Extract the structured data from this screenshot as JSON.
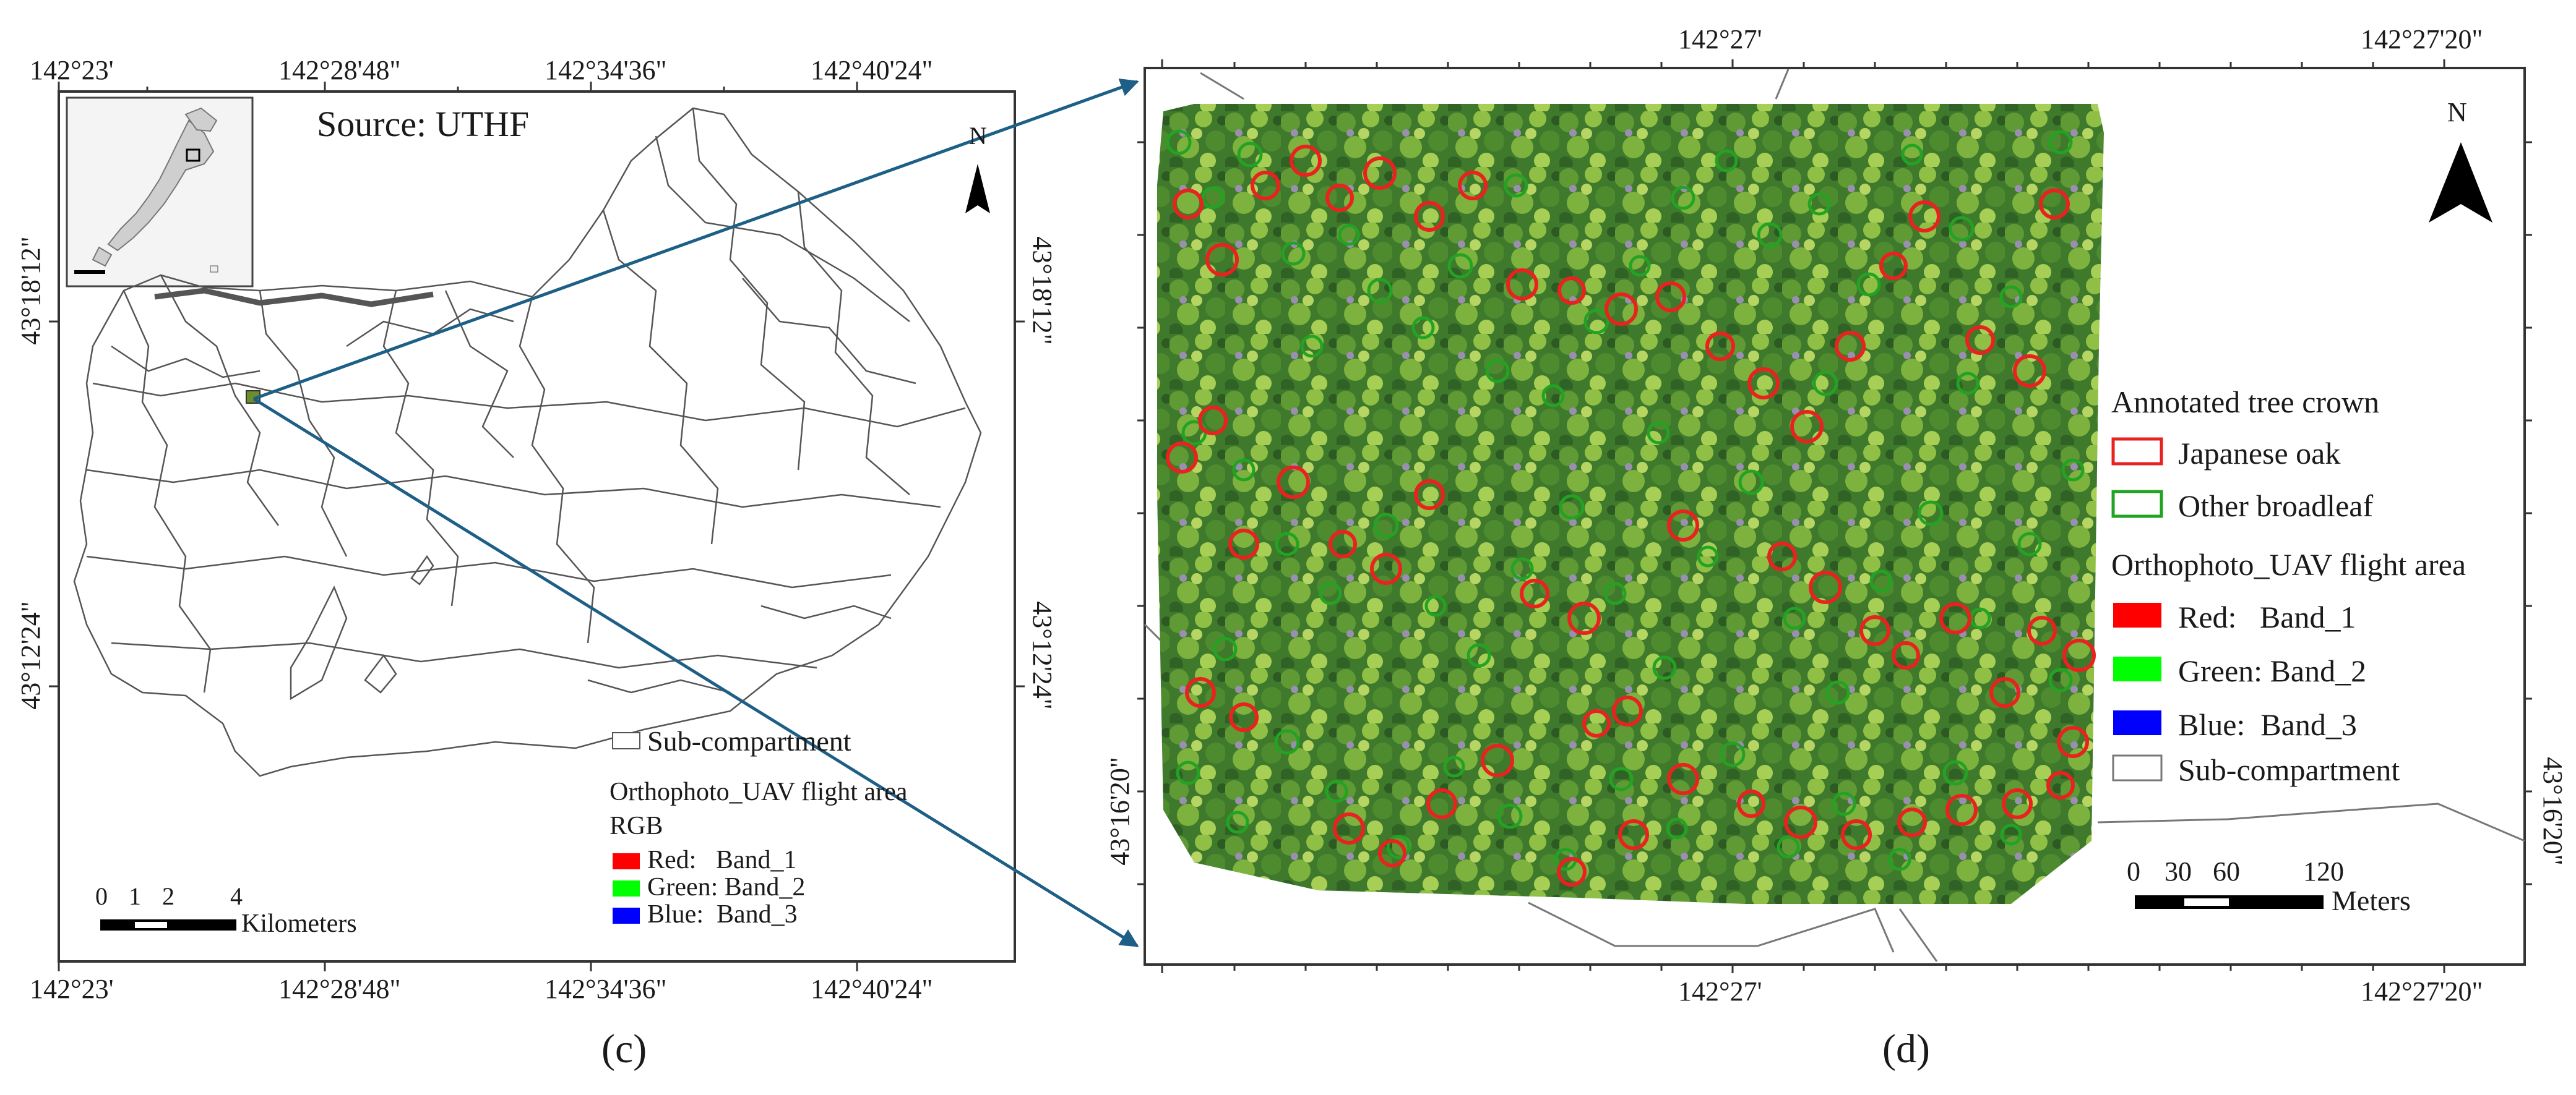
{
  "panel_c": {
    "top_lon_labels": [
      "142°23'",
      "142°28'48\"",
      "142°34'36\"",
      "142°40'24\""
    ],
    "bottom_lon_labels": [
      "142°23'",
      "142°28'48\"",
      "142°34'36\"",
      "142°40'24\""
    ],
    "left_lat_labels": [
      "43°18'12\"",
      "43°12'24\""
    ],
    "right_lat_labels": [
      "43°18'12\"",
      "43°12'24\""
    ],
    "source": "Source: UTHF",
    "north": "N",
    "legend": {
      "subcompartment": "Sub-compartment",
      "area_title": "Orthophoto_UAV flight area",
      "rgb": "RGB",
      "bands": [
        {
          "label": "Red:   Band_1",
          "color": "#ff0000"
        },
        {
          "label": "Green: Band_2",
          "color": "#00ff00"
        },
        {
          "label": "Blue:  Band_3",
          "color": "#0000ff"
        }
      ]
    },
    "scale": {
      "ticks": [
        "0",
        "1",
        "2",
        "4"
      ],
      "unit": "Kilometers"
    },
    "caption": "(c)"
  },
  "panel_d": {
    "top_lon_labels": [
      "142°27'",
      "142°27'20\""
    ],
    "bottom_lon_labels": [
      "142°27'",
      "142°27'20\""
    ],
    "left_lat_label": "43°16'20\"",
    "right_lat_label": "43°16'20\"",
    "north": "N",
    "legend": {
      "crown_title": "Annotated tree crown",
      "crowns": [
        {
          "label": "Japanese oak",
          "color": "#e8231f"
        },
        {
          "label": "Other broadleaf",
          "color": "#23a323"
        }
      ],
      "area_title": "Orthophoto_UAV flight area",
      "bands": [
        {
          "label": "Red:   Band_1",
          "color": "#ff0000"
        },
        {
          "label": "Green: Band_2",
          "color": "#00ff00"
        },
        {
          "label": "Blue:  Band_3",
          "color": "#0000ff"
        }
      ],
      "subcompartment": "Sub-compartment"
    },
    "scale": {
      "ticks": [
        "0",
        "30",
        "60",
        "120"
      ],
      "unit": "Meters"
    },
    "caption": "(d)"
  },
  "colors": {
    "arrow": "#1d5f86",
    "frame": "#333333",
    "boundary": "#555555"
  }
}
